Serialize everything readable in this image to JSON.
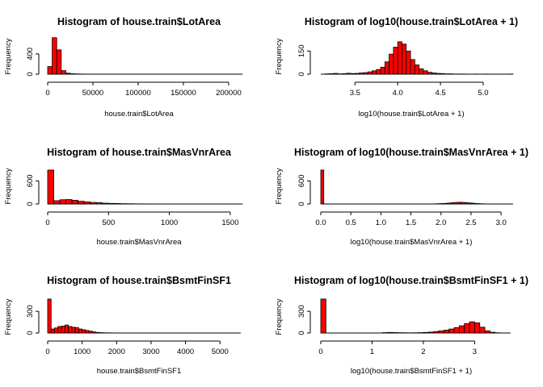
{
  "chart_data": [
    {
      "type": "bar",
      "title": "Histogram of house.train$LotArea",
      "xlabel": "house.train$LotArea",
      "ylabel": "Frequency",
      "xlim": [
        0,
        215245
      ],
      "ylim": [
        0,
        700
      ],
      "xticks": [
        0,
        50000,
        100000,
        150000,
        200000
      ],
      "yticks": [
        0,
        400
      ],
      "bin_edges": [
        0,
        5000,
        10000,
        15000,
        20000,
        25000,
        30000,
        35000,
        40000,
        45000,
        50000,
        55000,
        60000,
        65000,
        70000,
        75000,
        80000,
        85000,
        90000,
        95000,
        100000,
        105000,
        110000,
        115000,
        120000,
        125000,
        130000,
        135000,
        140000,
        145000,
        150000,
        155000,
        160000,
        165000,
        170000,
        175000,
        180000,
        185000,
        190000,
        195000,
        200000,
        205000,
        210000,
        215000
      ],
      "counts": [
        150,
        720,
        480,
        70,
        20,
        8,
        5,
        3,
        2,
        1,
        1,
        1,
        1,
        0,
        0,
        0,
        0,
        0,
        0,
        0,
        0,
        0,
        0,
        0,
        0,
        0,
        0,
        0,
        0,
        0,
        0,
        0,
        1,
        0,
        0,
        0,
        0,
        0,
        0,
        0,
        0,
        0,
        1
      ]
    },
    {
      "type": "bar",
      "title": "Histogram of log10(house.train$LotArea + 1)",
      "xlabel": "log10(house.train$LotArea + 1)",
      "ylabel": "Frequency",
      "xlim": [
        3.1,
        5.35
      ],
      "ylim": [
        0,
        230
      ],
      "xticks": [
        3.5,
        4.0,
        4.5,
        5.0
      ],
      "xtick_labels": [
        "3.5",
        "4.0",
        "4.5",
        "5.0"
      ],
      "yticks": [
        0,
        150
      ],
      "bin_edges": [
        3.1,
        3.15,
        3.2,
        3.25,
        3.3,
        3.35,
        3.4,
        3.45,
        3.5,
        3.55,
        3.6,
        3.65,
        3.7,
        3.75,
        3.8,
        3.85,
        3.9,
        3.95,
        4.0,
        4.05,
        4.1,
        4.15,
        4.2,
        4.25,
        4.3,
        4.35,
        4.4,
        4.45,
        4.5,
        4.55,
        4.6,
        4.65,
        4.7,
        4.75,
        4.8,
        4.85,
        4.9,
        4.95,
        5.0,
        5.05,
        5.1,
        5.15,
        5.2,
        5.25,
        5.3,
        5.35
      ],
      "counts": [
        0,
        2,
        3,
        5,
        2,
        3,
        6,
        4,
        5,
        8,
        10,
        15,
        22,
        30,
        45,
        80,
        130,
        175,
        210,
        195,
        150,
        95,
        60,
        35,
        22,
        12,
        8,
        5,
        4,
        2,
        2,
        1,
        1,
        1,
        0,
        0,
        1,
        0,
        1,
        0,
        0,
        0,
        0,
        0,
        1
      ]
    },
    {
      "type": "bar",
      "title": "Histogram of house.train$MasVnrArea",
      "xlabel": "house.train$MasVnrArea",
      "ylabel": "Frequency",
      "xlim": [
        0,
        1600
      ],
      "ylim": [
        0,
        900
      ],
      "xticks": [
        0,
        500,
        1000,
        1500
      ],
      "yticks": [
        0,
        600
      ],
      "bin_edges": [
        0,
        50,
        100,
        150,
        200,
        250,
        300,
        350,
        400,
        450,
        500,
        550,
        600,
        650,
        700,
        750,
        800,
        850,
        900,
        950,
        1000,
        1050,
        1100,
        1150,
        1200,
        1250,
        1300,
        1350,
        1400,
        1450,
        1500,
        1550,
        1600
      ],
      "counts": [
        880,
        85,
        110,
        115,
        95,
        70,
        55,
        40,
        35,
        20,
        15,
        12,
        8,
        6,
        4,
        3,
        2,
        2,
        1,
        1,
        1,
        1,
        1,
        0,
        0,
        0,
        0,
        0,
        0,
        0,
        0,
        1
      ]
    },
    {
      "type": "bar",
      "title": "Histogram of log10(house.train$MasVnrArea + 1)",
      "xlabel": "log10(house.train$MasVnrArea + 1)",
      "ylabel": "Frequency",
      "xlim": [
        0,
        3.2
      ],
      "ylim": [
        0,
        900
      ],
      "xticks": [
        0,
        0.5,
        1.0,
        1.5,
        2.0,
        2.5,
        3.0
      ],
      "xtick_labels": [
        "0.0",
        "0.5",
        "1.0",
        "1.5",
        "2.0",
        "2.5",
        "3.0"
      ],
      "yticks": [
        0,
        600
      ],
      "bin_edges": [
        0,
        0.05,
        0.1,
        0.15,
        0.2,
        0.25,
        0.3,
        0.35,
        0.4,
        0.45,
        0.5,
        0.55,
        0.6,
        0.65,
        0.7,
        0.75,
        0.8,
        0.85,
        0.9,
        0.95,
        1.0,
        1.05,
        1.1,
        1.15,
        1.2,
        1.25,
        1.3,
        1.35,
        1.4,
        1.45,
        1.5,
        1.55,
        1.6,
        1.65,
        1.7,
        1.75,
        1.8,
        1.85,
        1.9,
        1.95,
        2.0,
        2.05,
        2.1,
        2.15,
        2.2,
        2.25,
        2.3,
        2.35,
        2.4,
        2.45,
        2.5,
        2.55,
        2.6,
        2.65,
        2.7,
        2.75,
        2.8,
        2.85,
        2.9,
        2.95,
        3.0,
        3.05,
        3.1,
        3.15,
        3.2
      ],
      "counts": [
        880,
        0,
        0,
        0,
        0,
        0,
        0,
        0,
        0,
        0,
        0,
        0,
        0,
        0,
        0,
        0,
        0,
        0,
        0,
        0,
        0,
        0,
        0,
        0,
        0,
        0,
        0,
        0,
        0,
        0,
        0,
        0,
        0,
        0,
        0,
        0,
        0,
        0,
        5,
        8,
        12,
        15,
        22,
        30,
        38,
        42,
        45,
        40,
        35,
        28,
        22,
        15,
        10,
        6,
        3,
        2,
        1,
        1,
        0,
        0,
        0,
        0,
        0,
        0
      ]
    },
    {
      "type": "bar",
      "title": "Histogram of house.train$BsmtFinSF1",
      "xlabel": "house.train$BsmtFinSF1",
      "ylabel": "Frequency",
      "xlim": [
        0,
        5650
      ],
      "ylim": [
        0,
        480
      ],
      "xticks": [
        0,
        1000,
        2000,
        3000,
        4000,
        5000
      ],
      "yticks": [
        0,
        300
      ],
      "bin_edges": [
        0,
        100,
        200,
        300,
        400,
        500,
        600,
        700,
        800,
        900,
        1000,
        1100,
        1200,
        1300,
        1400,
        1500,
        1600,
        1700,
        1800,
        1900,
        2000,
        2100,
        2200,
        2300,
        2400,
        2500,
        2600,
        2700,
        2800,
        2900,
        3000,
        3100,
        3200,
        3300,
        3400,
        3500,
        3600,
        3700,
        3800,
        3900,
        4000,
        4100,
        4200,
        4300,
        4400,
        4500,
        4600,
        4700,
        4800,
        4900,
        5000,
        5100,
        5200,
        5300,
        5400,
        5500,
        5600
      ],
      "counts": [
        470,
        55,
        70,
        90,
        95,
        110,
        90,
        80,
        75,
        55,
        45,
        35,
        25,
        15,
        8,
        5,
        3,
        2,
        2,
        1,
        1,
        1,
        1,
        0,
        0,
        0,
        0,
        0,
        0,
        0,
        0,
        0,
        0,
        0,
        0,
        0,
        0,
        0,
        0,
        0,
        0,
        0,
        0,
        0,
        0,
        0,
        0,
        0,
        0,
        0,
        0,
        0,
        0,
        1,
        0,
        0
      ]
    },
    {
      "type": "bar",
      "title": "Histogram of log10(house.train$BsmtFinSF1 + 1)",
      "xlabel": "log10(house.train$BsmtFinSF1 + 1)",
      "ylabel": "Frequency",
      "xlim": [
        0,
        3.75
      ],
      "ylim": [
        0,
        480
      ],
      "xticks": [
        0,
        1,
        2,
        3
      ],
      "yticks": [
        0,
        300
      ],
      "bin_edges": [
        0,
        0.1,
        0.2,
        0.3,
        0.4,
        0.5,
        0.6,
        0.7,
        0.8,
        0.9,
        1.0,
        1.1,
        1.2,
        1.3,
        1.4,
        1.5,
        1.6,
        1.7,
        1.8,
        1.9,
        2.0,
        2.1,
        2.2,
        2.3,
        2.4,
        2.5,
        2.6,
        2.7,
        2.8,
        2.9,
        3.0,
        3.1,
        3.2,
        3.3,
        3.4,
        3.5,
        3.6,
        3.7
      ],
      "counts": [
        470,
        0,
        0,
        0,
        0,
        0,
        0,
        0,
        0,
        0,
        0,
        0,
        5,
        8,
        6,
        4,
        3,
        2,
        3,
        5,
        8,
        12,
        20,
        30,
        40,
        55,
        75,
        100,
        130,
        155,
        140,
        80,
        30,
        10,
        3,
        1,
        0
      ]
    }
  ]
}
